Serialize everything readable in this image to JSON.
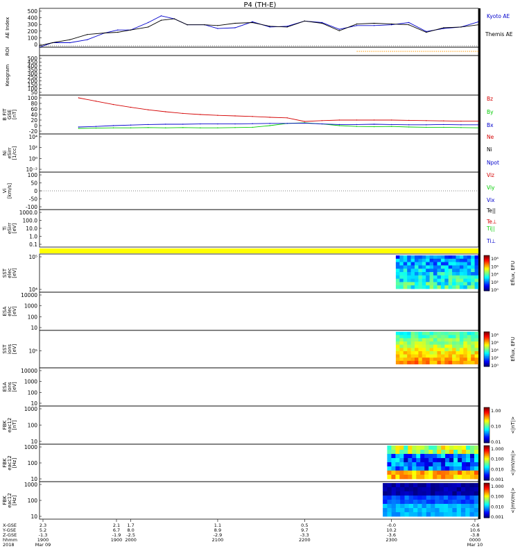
{
  "title": "P4 (TH-E)",
  "colors": {
    "red": "#d40000",
    "green": "#00cc00",
    "blue": "#0000cc",
    "black": "#000000",
    "yellow": "#ffff00",
    "orange": "#ff9900"
  },
  "chart_data": [
    {
      "type": "line",
      "panel": "ae",
      "ylabel": "AE Index",
      "yticks": [
        "500",
        "400",
        "300",
        "200",
        "100",
        "0"
      ],
      "ylim": [
        0,
        520
      ],
      "x_hours": [
        18.95,
        19.1,
        19.3,
        19.5,
        19.7,
        19.85,
        20.0,
        20.2,
        20.35,
        20.5,
        20.65,
        20.85,
        21.0,
        21.2,
        21.4,
        21.6,
        21.8,
        22.0,
        22.2,
        22.4,
        22.6,
        22.8,
        23.0,
        23.2,
        23.4,
        23.6,
        23.8,
        24.0
      ],
      "series": [
        {
          "name": "Kyoto AE",
          "color": "#0000cc",
          "values": [
            0,
            60,
            60,
            100,
            190,
            230,
            230,
            330,
            420,
            380,
            300,
            300,
            250,
            260,
            340,
            270,
            280,
            350,
            330,
            240,
            290,
            290,
            300,
            330,
            210,
            250,
            270,
            340
          ]
        },
        {
          "name": "Themis AE",
          "color": "#000000",
          "values": [
            20,
            60,
            100,
            170,
            190,
            200,
            230,
            270,
            360,
            380,
            300,
            300,
            290,
            320,
            330,
            280,
            270,
            350,
            320,
            220,
            310,
            320,
            310,
            300,
            200,
            260,
            270,
            300
          ]
        }
      ],
      "legend": [
        "Kyoto AE",
        "Themis AE"
      ]
    },
    {
      "type": "line",
      "panel": "roi",
      "ylabel": "ROI",
      "x_start_hours": 22.6,
      "color": "#ff9900"
    },
    {
      "type": "line",
      "panel": "keogram",
      "ylabel": "Keogram",
      "yticks": [
        "500",
        "450",
        "400",
        "350",
        "300",
        "250",
        "200",
        "150",
        "100",
        "50"
      ]
    },
    {
      "type": "line",
      "panel": "bfield",
      "ylabel": "B FIT",
      "ylabel2": "GSE",
      "ylabel3": "[nT]",
      "yticks": [
        "100",
        "80",
        "60",
        "40",
        "20",
        "0",
        "-20"
      ],
      "ylim": [
        -30,
        110
      ],
      "x_hours": [
        19.4,
        19.6,
        19.8,
        20.0,
        20.2,
        20.4,
        20.6,
        20.8,
        21.0,
        21.2,
        21.4,
        21.6,
        21.8,
        22.0,
        22.2,
        22.4,
        22.6,
        22.8,
        23.0,
        23.2,
        23.4,
        23.6,
        23.8,
        24.0
      ],
      "series": [
        {
          "name": "Bz",
          "color": "#d40000",
          "values": [
            100,
            88,
            76,
            66,
            57,
            50,
            44,
            40,
            37,
            35,
            33,
            30,
            28,
            15,
            18,
            20,
            20,
            20,
            20,
            19,
            18,
            17,
            16,
            16
          ]
        },
        {
          "name": "By",
          "color": "#00cc00",
          "values": [
            -10,
            -9,
            -8,
            -8,
            -7,
            -8,
            -7,
            -8,
            -8,
            -7,
            -6,
            0,
            8,
            10,
            6,
            0,
            -3,
            -4,
            -3,
            -5,
            -6,
            -6,
            -7,
            -8
          ]
        },
        {
          "name": "Bx",
          "color": "#0000cc",
          "values": [
            -5,
            -3,
            0,
            2,
            4,
            5,
            5,
            6,
            6,
            6,
            7,
            8,
            8,
            9,
            6,
            4,
            4,
            5,
            4,
            3,
            3,
            4,
            3,
            3
          ]
        }
      ],
      "legend": [
        "Bz",
        "By",
        "Bx"
      ]
    },
    {
      "type": "line",
      "panel": "density",
      "ylabel": "Ni",
      "ylabel2": "eSirr",
      "ylabel3": "[1/cc]",
      "yticks": [
        "10⁴",
        "10²",
        "10⁰",
        "10⁻²"
      ],
      "legend": [
        "Ne",
        "Ni",
        "Npot"
      ],
      "legend_colors": [
        "#d40000",
        "#000000",
        "#0000cc"
      ]
    },
    {
      "type": "line",
      "panel": "velocity",
      "ylabel": "Vi",
      "ylabel2": "[km/s]",
      "yticks": [
        "100",
        "50",
        "0",
        "-50",
        "-100"
      ],
      "legend": [
        "Viz",
        "Viy",
        "Vix"
      ],
      "legend_colors": [
        "#d40000",
        "#00cc00",
        "#0000cc"
      ]
    },
    {
      "type": "line",
      "panel": "temperature",
      "ylabel": "Ti",
      "ylabel2": "eSirr",
      "ylabel3": "[eV]",
      "yticks": [
        "1000.0",
        "100.0",
        "10.0",
        "1.0",
        "0.1"
      ],
      "legend": [
        "Te||",
        "Te⊥",
        "Ti||",
        "Ti⊥"
      ],
      "legend_colors": [
        "#000000",
        "#d40000",
        "#00cc00",
        "#0000cc"
      ]
    },
    {
      "type": "heatmap",
      "panel": "sst_e",
      "ylabel": "SST",
      "ylabel2": "elec",
      "ylabel3": "[eV]",
      "yticks": [
        "10⁵",
        "10⁴"
      ],
      "colorbar_label": "Eflux, EFU",
      "colorbar_ticks": [
        "10⁸",
        "10⁶",
        "10⁴",
        "10²",
        "10⁰"
      ],
      "x_start_hours": 23.05
    },
    {
      "type": "heatmap",
      "panel": "esa_e",
      "ylabel": "ESA",
      "ylabel2": "elec",
      "ylabel3": "[eV]",
      "yticks": [
        "10000",
        "1000",
        "100",
        "10"
      ]
    },
    {
      "type": "heatmap",
      "panel": "sst_i",
      "ylabel": "SST",
      "ylabel2": "ions",
      "ylabel3": "[eV]",
      "yticks": [
        "10⁵"
      ],
      "colorbar_label": "Eflux, EFU",
      "colorbar_ticks": [
        "10⁸",
        "10⁶",
        "10⁴",
        "10²",
        "10⁰"
      ],
      "x_start_hours": 23.05
    },
    {
      "type": "heatmap",
      "panel": "esa_i",
      "ylabel": "ESA",
      "ylabel2": "ions",
      "ylabel3": "[eV]",
      "yticks": [
        "10000",
        "1000",
        "100",
        "10"
      ]
    },
    {
      "type": "heatmap",
      "panel": "fbk1",
      "ylabel": "FBK",
      "ylabel2": "eac12",
      "ylabel3": "[nT]",
      "yticks": [
        "1000",
        "100",
        "10"
      ],
      "colorbar_label": "<|nT|>",
      "colorbar_ticks": [
        "1.00",
        "0.10",
        "0.01"
      ]
    },
    {
      "type": "heatmap",
      "panel": "fbk2",
      "ylabel": "FBK",
      "ylabel2": "eac12",
      "ylabel3": "[Hz]",
      "yticks": [
        "1000",
        "100",
        "10"
      ],
      "colorbar_label": "<|mV/m|>",
      "colorbar_ticks": [
        "1.000",
        "0.100",
        "0.010",
        "0.001"
      ],
      "x_start_hours": 22.95
    },
    {
      "type": "heatmap",
      "panel": "fbk3",
      "ylabel": "FBK",
      "ylabel2": "eac12",
      "ylabel3": "[Hz]",
      "yticks": [
        "1000",
        "100",
        "10"
      ],
      "colorbar_label": "<|mV/m|>",
      "colorbar_ticks": [
        "1.000",
        "0.100",
        "0.010",
        "0.001"
      ],
      "x_start_hours": 22.9
    }
  ],
  "xaxis": {
    "row_labels": [
      "X-GSE",
      "Y-GSE",
      "Z-GSE",
      "hhmm",
      "2018"
    ],
    "columns": [
      {
        "x_hours": 18.95,
        "x_gse": "2.3",
        "y_gse": "5.2",
        "z_gse": "-1.3",
        "hhmm": "1900",
        "date": "Mar 09"
      },
      {
        "x_hours": 19.0,
        "x_gse": "2.1",
        "y_gse": "6.7",
        "z_gse": "-1.9",
        "hhmm": "1900",
        "date": ""
      },
      {
        "x_hours": 20.0,
        "x_gse": "1.7",
        "y_gse": "8.0",
        "z_gse": "-2.5",
        "hhmm": "2000",
        "date": ""
      },
      {
        "x_hours": 21.0,
        "x_gse": "1.1",
        "y_gse": "8.9",
        "z_gse": "-2.9",
        "hhmm": "2100",
        "date": ""
      },
      {
        "x_hours": 22.0,
        "x_gse": "0.5",
        "y_gse": "9.7",
        "z_gse": "-3.3",
        "hhmm": "2200",
        "date": ""
      },
      {
        "x_hours": 23.0,
        "x_gse": "-0.0",
        "y_gse": "10.2",
        "z_gse": "-3.6",
        "hhmm": "2300",
        "date": ""
      },
      {
        "x_hours": 24.0,
        "x_gse": "-0.6",
        "y_gse": "10.6",
        "z_gse": "-3.8",
        "hhmm": "0000",
        "date": "Mar 10"
      }
    ]
  }
}
